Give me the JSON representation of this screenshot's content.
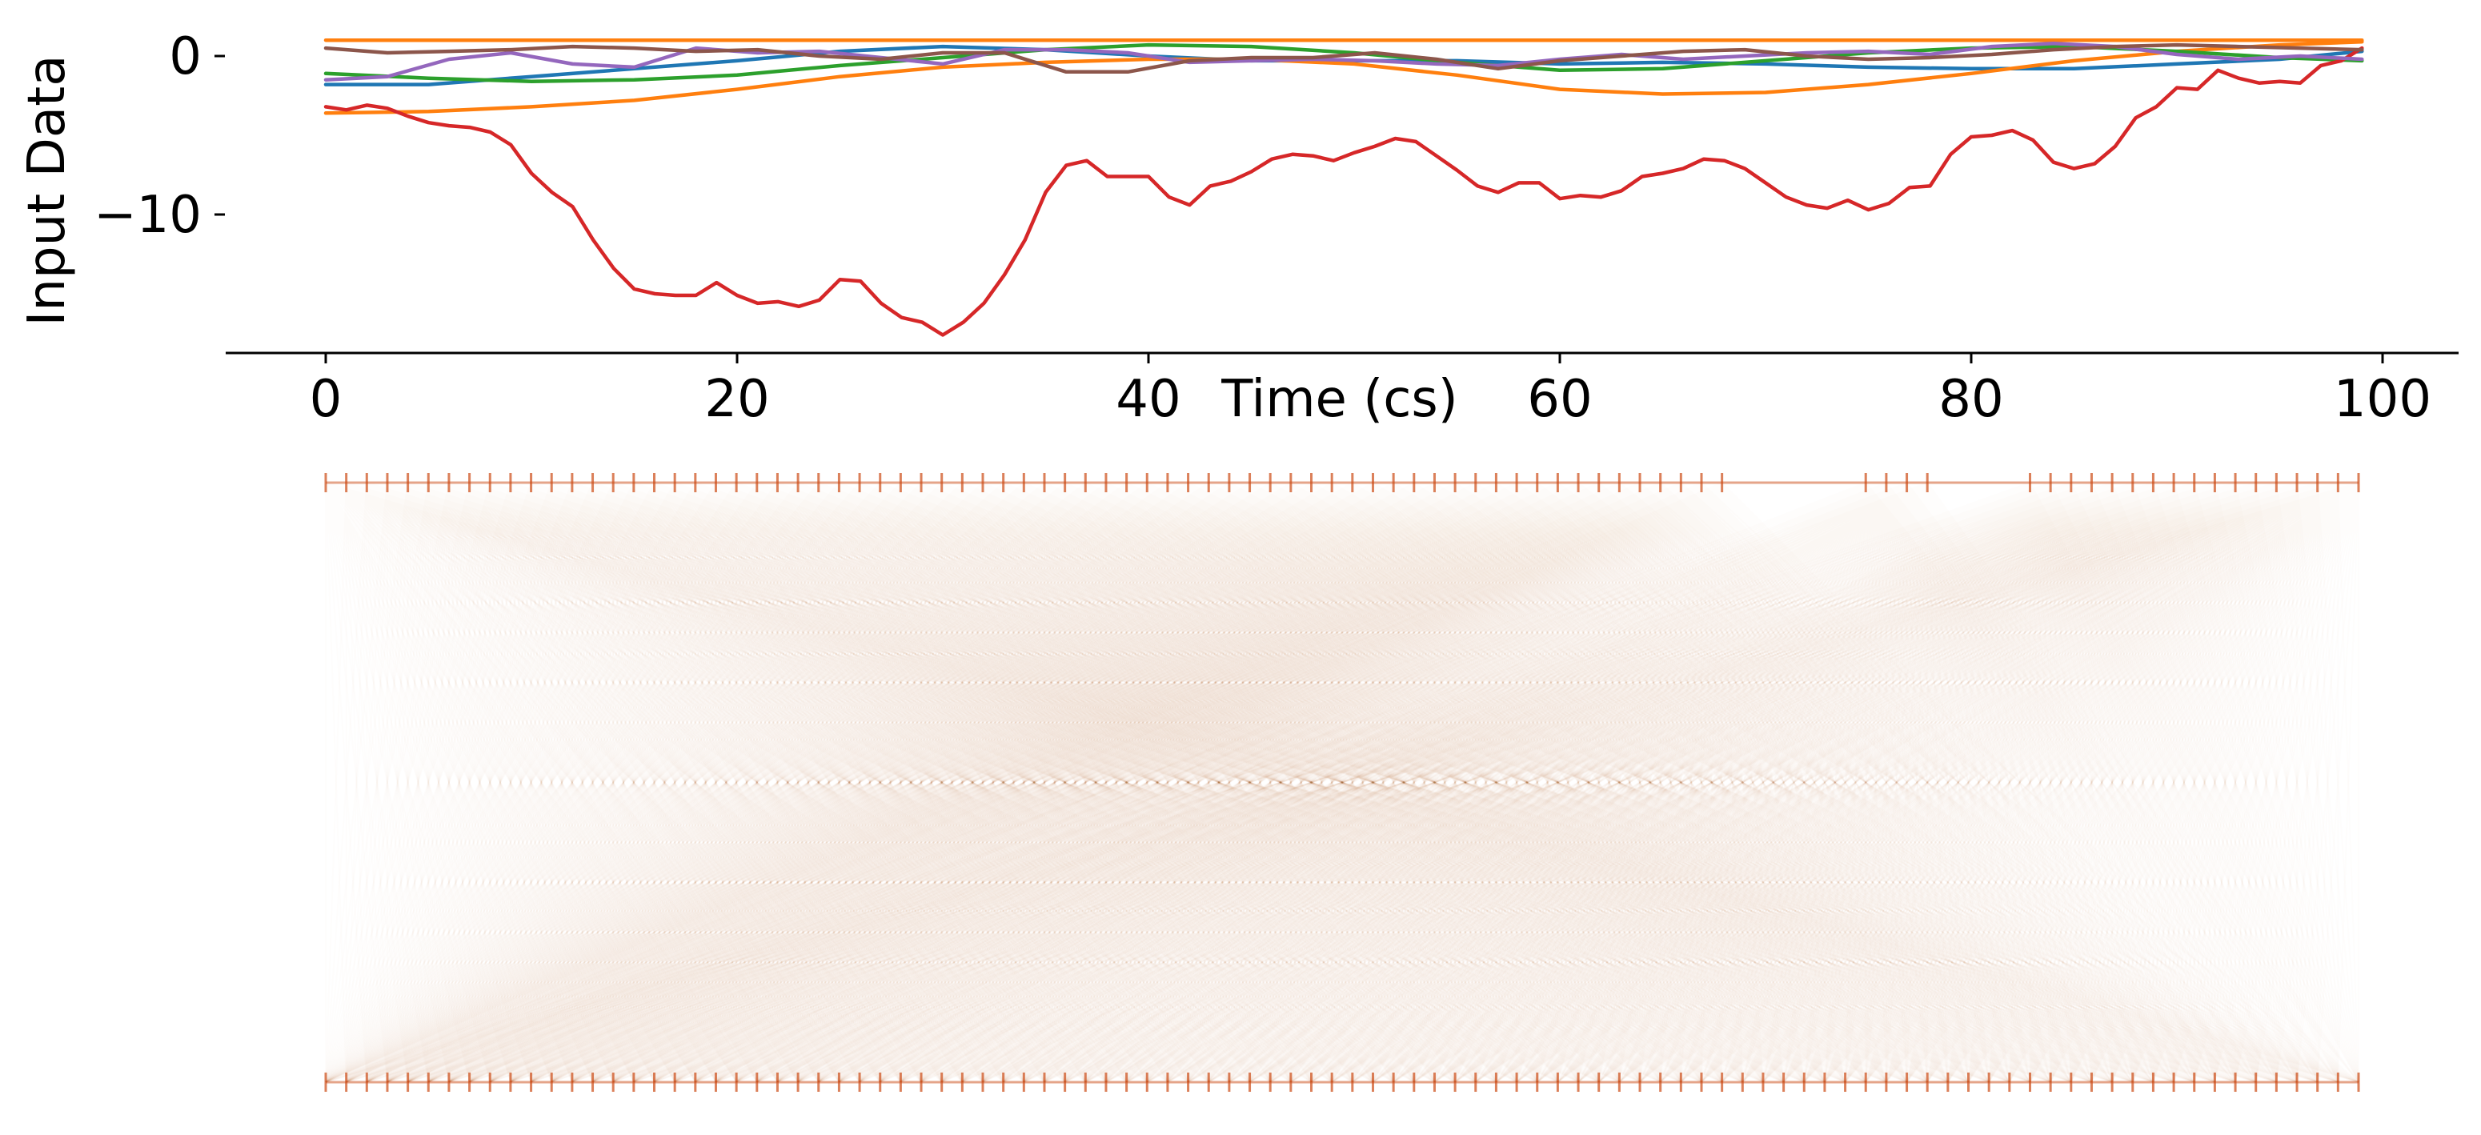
{
  "chart_data": [
    {
      "type": "line",
      "xlabel": "Time (cs)",
      "ylabel": "Input Data",
      "xlim": [
        -5,
        104
      ],
      "ylim": [
        -18.6,
        1.4
      ],
      "xticks": [
        0,
        20,
        40,
        60,
        80,
        100
      ],
      "yticks": [
        0,
        -10
      ],
      "ytick_labels": [
        "0",
        "−10"
      ],
      "grid": false,
      "legend": "none",
      "series": [
        {
          "color": "#1f77b4",
          "x": [
            0,
            5,
            10,
            15,
            20,
            25,
            30,
            35,
            40,
            45,
            50,
            55,
            60,
            65,
            70,
            75,
            80,
            85,
            90,
            95,
            99
          ],
          "y": [
            -1.8,
            -1.8,
            -1.3,
            -0.8,
            -0.3,
            0.3,
            0.6,
            0.4,
            0.0,
            -0.3,
            -0.3,
            -0.3,
            -0.5,
            -0.4,
            -0.5,
            -0.7,
            -0.8,
            -0.8,
            -0.5,
            -0.2,
            0.3
          ]
        },
        {
          "color": "#ff7f0e",
          "x": [
            0,
            5,
            10,
            15,
            20,
            25,
            30,
            35,
            40,
            45,
            50,
            55,
            60,
            65,
            70,
            75,
            80,
            85,
            90,
            95,
            99
          ],
          "y": [
            -3.6,
            -3.5,
            -3.2,
            -2.8,
            -2.1,
            -1.3,
            -0.7,
            -0.4,
            -0.2,
            -0.2,
            -0.5,
            -1.2,
            -2.1,
            -2.4,
            -2.3,
            -1.8,
            -1.1,
            -0.3,
            0.3,
            0.7,
            0.9
          ]
        },
        {
          "color": "#ff7f0e",
          "x": [
            0,
            10,
            20,
            30,
            40,
            50,
            60,
            70,
            80,
            90,
            99
          ],
          "y": [
            1.0,
            1.0,
            1.0,
            1.0,
            1.0,
            1.0,
            1.0,
            1.0,
            1.0,
            1.0,
            1.0
          ]
        },
        {
          "color": "#2ca02c",
          "x": [
            0,
            5,
            10,
            15,
            20,
            25,
            30,
            35,
            40,
            45,
            50,
            55,
            60,
            65,
            70,
            75,
            80,
            85,
            90,
            95,
            99
          ],
          "y": [
            -1.1,
            -1.4,
            -1.6,
            -1.5,
            -1.2,
            -0.6,
            -0.1,
            0.4,
            0.7,
            0.6,
            0.2,
            -0.4,
            -0.9,
            -0.8,
            -0.3,
            0.2,
            0.5,
            0.6,
            0.3,
            -0.1,
            -0.3
          ]
        },
        {
          "color": "#d62728",
          "x": [
            0,
            1,
            2,
            3,
            4,
            5,
            6,
            7,
            8,
            9,
            10,
            11,
            12,
            13,
            14,
            15,
            16,
            17,
            18,
            19,
            20,
            21,
            22,
            23,
            24,
            25,
            26,
            27,
            28,
            29,
            30,
            31,
            32,
            33,
            34,
            35,
            36,
            37,
            38,
            39,
            40,
            41,
            42,
            43,
            44,
            45,
            46,
            47,
            48,
            49,
            50,
            51,
            52,
            53,
            54,
            55,
            56,
            57,
            58,
            59,
            60,
            61,
            62,
            63,
            64,
            65,
            66,
            67,
            68,
            69,
            70,
            71,
            72,
            73,
            74,
            75,
            76,
            77,
            78,
            79,
            80,
            81,
            82,
            83,
            84,
            85,
            86,
            87,
            88,
            89,
            90,
            91,
            92,
            93,
            94,
            95,
            96,
            97,
            98,
            99
          ],
          "y": [
            -3.2,
            -3.4,
            -3.1,
            -3.3,
            -3.8,
            -4.2,
            -4.4,
            -4.5,
            -4.8,
            -5.6,
            -7.4,
            -8.6,
            -9.5,
            -11.6,
            -13.4,
            -14.7,
            -15.0,
            -15.1,
            -15.1,
            -14.3,
            -15.1,
            -15.6,
            -15.5,
            -15.8,
            -15.4,
            -14.1,
            -14.2,
            -15.6,
            -16.5,
            -16.8,
            -17.6,
            -16.8,
            -15.6,
            -13.8,
            -11.6,
            -8.6,
            -6.9,
            -6.6,
            -7.6,
            -7.6,
            -7.6,
            -8.9,
            -9.4,
            -8.2,
            -7.9,
            -7.3,
            -6.5,
            -6.2,
            -6.3,
            -6.6,
            -6.1,
            -5.7,
            -5.2,
            -5.4,
            -6.3,
            -7.2,
            -8.2,
            -8.6,
            -8.0,
            -8.0,
            -9.0,
            -8.8,
            -8.9,
            -8.5,
            -7.6,
            -7.4,
            -7.1,
            -6.5,
            -6.6,
            -7.1,
            -8.0,
            -8.9,
            -9.4,
            -9.6,
            -9.1,
            -9.7,
            -9.3,
            -8.3,
            -8.2,
            -6.2,
            -5.1,
            -5.0,
            -4.7,
            -5.3,
            -6.7,
            -7.1,
            -6.8,
            -5.7,
            -3.9,
            -3.2,
            -2.0,
            -2.1,
            -0.9,
            -1.4,
            -1.7,
            -1.6,
            -1.7,
            -0.6,
            -0.3,
            0.5
          ]
        },
        {
          "color": "#9467bd",
          "x": [
            0,
            3,
            6,
            9,
            12,
            15,
            18,
            21,
            24,
            27,
            30,
            33,
            36,
            39,
            42,
            45,
            48,
            51,
            54,
            57,
            60,
            63,
            66,
            69,
            72,
            75,
            78,
            81,
            84,
            87,
            90,
            93,
            96,
            99
          ],
          "y": [
            -1.5,
            -1.3,
            -0.2,
            0.2,
            -0.5,
            -0.7,
            0.5,
            0.2,
            0.3,
            -0.1,
            -0.5,
            0.4,
            0.4,
            0.2,
            -0.4,
            -0.3,
            -0.2,
            -0.3,
            -0.5,
            -0.6,
            -0.2,
            0.1,
            -0.2,
            0.0,
            0.2,
            0.3,
            0.1,
            0.6,
            0.8,
            0.6,
            0.1,
            -0.2,
            0.0,
            -0.2
          ]
        },
        {
          "color": "#8c564b",
          "x": [
            0,
            3,
            6,
            9,
            12,
            15,
            18,
            21,
            24,
            27,
            30,
            33,
            36,
            39,
            42,
            45,
            48,
            51,
            54,
            57,
            60,
            63,
            66,
            69,
            72,
            75,
            78,
            81,
            84,
            87,
            90,
            93,
            96,
            99
          ],
          "y": [
            0.5,
            0.2,
            0.3,
            0.4,
            0.6,
            0.5,
            0.3,
            0.4,
            0.0,
            -0.2,
            0.2,
            0.2,
            -1.0,
            -1.0,
            -0.3,
            -0.1,
            -0.1,
            0.2,
            -0.2,
            -0.8,
            -0.3,
            0.0,
            0.3,
            0.4,
            0.0,
            -0.2,
            -0.1,
            0.1,
            0.4,
            0.6,
            0.7,
            0.6,
            0.5,
            0.4
          ]
        }
      ]
    },
    {
      "type": "attention-connection-map",
      "top_row_tokens": 100,
      "bottom_row_tokens": 100,
      "missing_top_ranges": [
        [
          69,
          74
        ],
        [
          79,
          82
        ]
      ],
      "color": "#cc4a14"
    }
  ]
}
